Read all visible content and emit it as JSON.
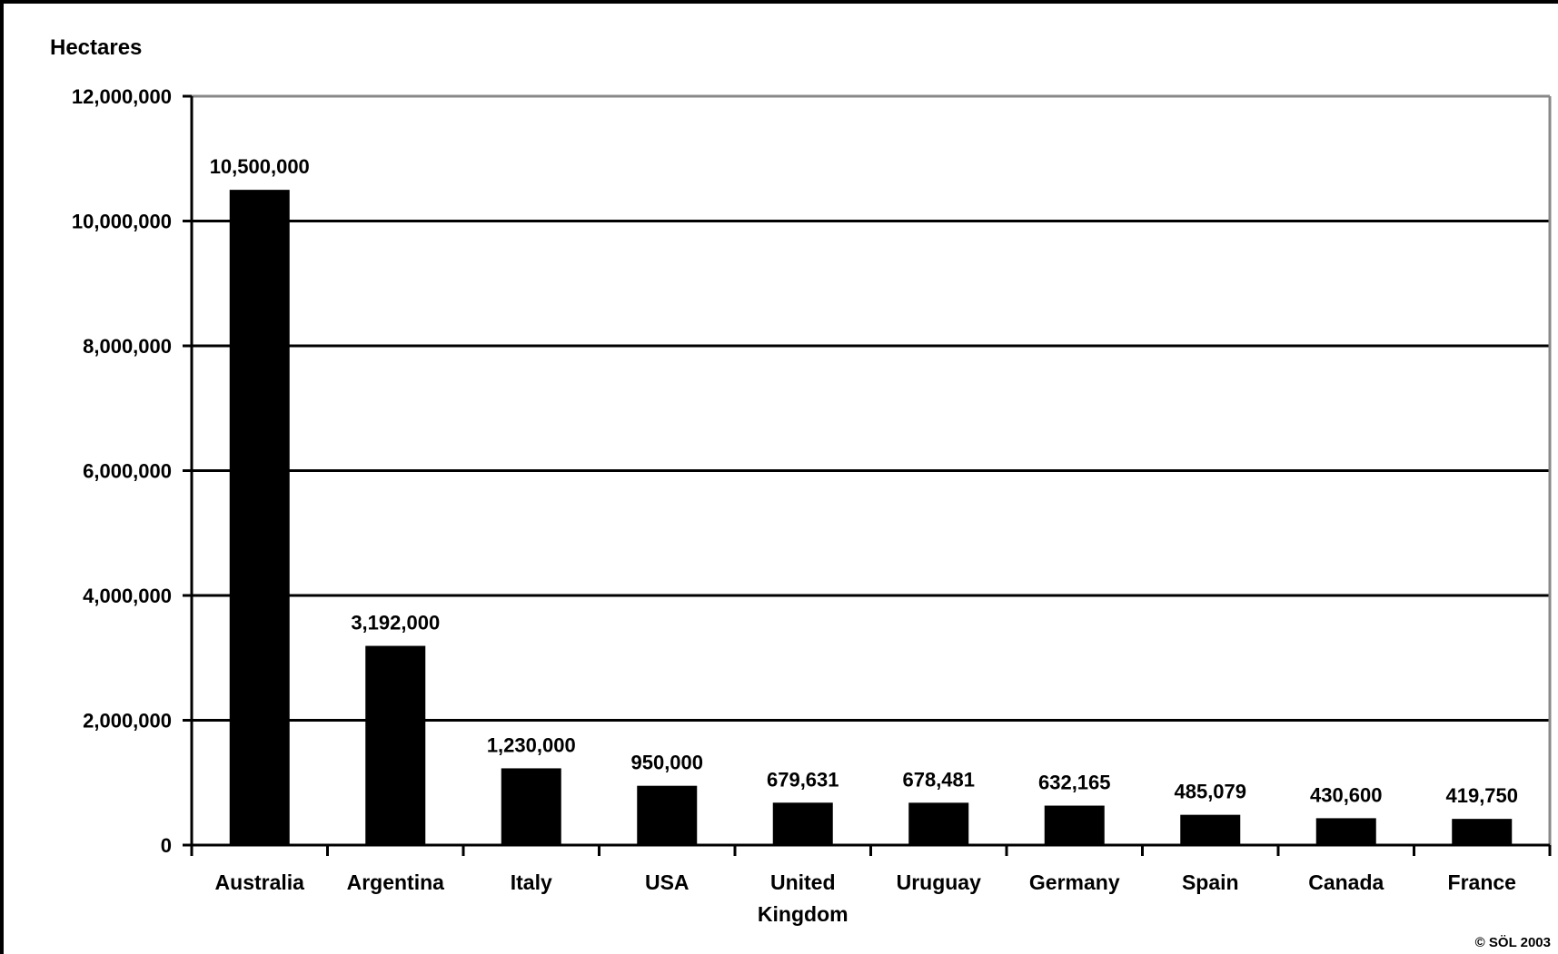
{
  "chart_data": {
    "type": "bar",
    "title": "",
    "xlabel": "",
    "ylabel": "Hectares",
    "ylim": [
      0,
      12000000
    ],
    "yticks": [
      0,
      2000000,
      4000000,
      6000000,
      8000000,
      10000000,
      12000000
    ],
    "ytick_labels": [
      "0",
      "2,000,000",
      "4,000,000",
      "6,000,000",
      "8,000,000",
      "10,000,000",
      "12,000,000"
    ],
    "grid": true,
    "categories": [
      [
        "Australia"
      ],
      [
        "Argentina"
      ],
      [
        "Italy"
      ],
      [
        "USA"
      ],
      [
        "United",
        "Kingdom"
      ],
      [
        "Uruguay"
      ],
      [
        "Germany"
      ],
      [
        "Spain"
      ],
      [
        "Canada"
      ],
      [
        "France"
      ]
    ],
    "values": [
      10500000,
      3192000,
      1230000,
      950000,
      679631,
      678481,
      632165,
      485079,
      430600,
      419750
    ],
    "data_labels": [
      "10,500,000",
      "3,192,000",
      "1,230,000",
      "950,000",
      "679,631",
      "678,481",
      "632,165",
      "485,079",
      "430,600",
      "419,750"
    ],
    "bar_color": "#000000",
    "annotation": "© SÖL 2003"
  }
}
